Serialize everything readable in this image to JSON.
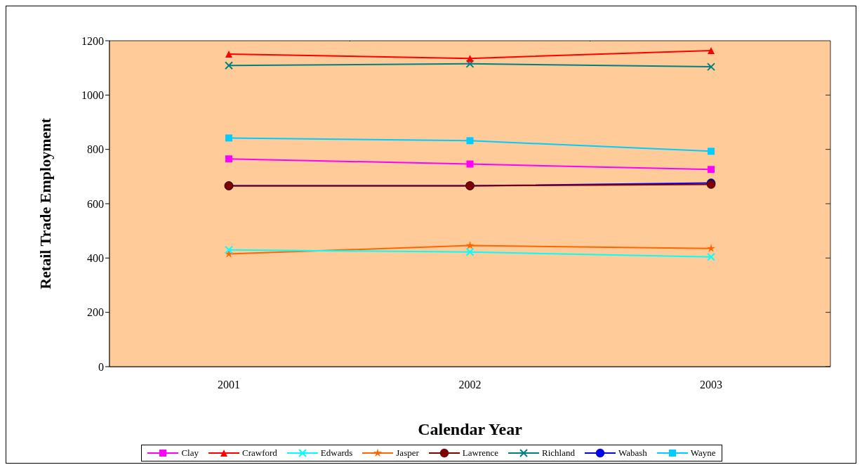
{
  "chart_data": {
    "type": "line",
    "xlabel": "Calendar Year",
    "ylabel": "Retail Trade Employment",
    "categories": [
      "2001",
      "2002",
      "2003"
    ],
    "ylim": [
      0,
      1200
    ],
    "yticks": [
      0,
      200,
      400,
      600,
      800,
      1000,
      1200
    ],
    "grid": true,
    "legend": "bottom",
    "series": [
      {
        "name": "Clay",
        "color": "#ff00ff",
        "marker": "square",
        "values": [
          765,
          746,
          726
        ]
      },
      {
        "name": "Crawford",
        "color": "#ff0000",
        "marker": "triangle",
        "values": [
          1151,
          1135,
          1164
        ]
      },
      {
        "name": "Edwards",
        "color": "#00ffff",
        "marker": "cross",
        "values": [
          430,
          422,
          404
        ]
      },
      {
        "name": "Jasper",
        "color": "#ff6600",
        "marker": "star",
        "values": [
          415,
          446,
          435
        ]
      },
      {
        "name": "Lawrence",
        "color": "#800000",
        "marker": "circle",
        "values": [
          666,
          666,
          671
        ]
      },
      {
        "name": "Richland",
        "color": "#008080",
        "marker": "cross",
        "values": [
          1109,
          1115,
          1104
        ]
      },
      {
        "name": "Wabash",
        "color": "#0000ff",
        "marker": "circle",
        "values": [
          666,
          666,
          676
        ]
      },
      {
        "name": "Wayne",
        "color": "#00ccff",
        "marker": "square",
        "values": [
          842,
          832,
          793
        ]
      }
    ]
  }
}
